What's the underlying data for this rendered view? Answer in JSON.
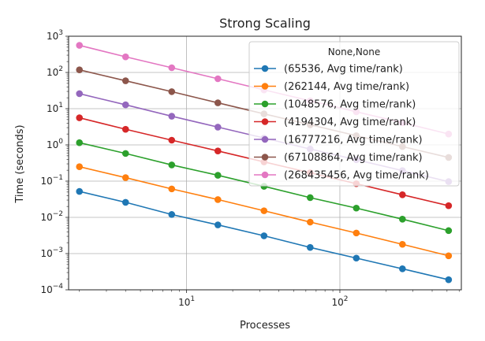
{
  "chart_data": {
    "type": "line",
    "title": "Strong Scaling",
    "xlabel": "Processes",
    "ylabel": "Time (seconds)",
    "xscale": "log",
    "yscale": "log",
    "xlim": [
      1.7,
      620
    ],
    "ylim": [
      0.0001,
      1000
    ],
    "grid": true,
    "x_ticks": [
      {
        "value": 10,
        "base": "10",
        "exp": "1"
      },
      {
        "value": 100,
        "base": "10",
        "exp": "2"
      }
    ],
    "y_ticks": [
      {
        "value": 0.0001,
        "base": "10",
        "exp": "−4"
      },
      {
        "value": 0.001,
        "base": "10",
        "exp": "−3"
      },
      {
        "value": 0.01,
        "base": "10",
        "exp": "−2"
      },
      {
        "value": 0.1,
        "base": "10",
        "exp": "−1"
      },
      {
        "value": 1,
        "base": "10",
        "exp": "0"
      },
      {
        "value": 10,
        "base": "10",
        "exp": "1"
      },
      {
        "value": 100,
        "base": "10",
        "exp": "2"
      },
      {
        "value": 1000,
        "base": "10",
        "exp": "3"
      }
    ],
    "legend": {
      "title": "None,None",
      "position": "upper right"
    },
    "x": [
      2,
      4,
      8,
      16,
      32,
      64,
      128,
      256,
      512
    ],
    "series": [
      {
        "name": "(65536, Avg time/rank)",
        "color": "#1f77b4",
        "values": [
          0.052,
          0.026,
          0.012,
          0.0062,
          0.0031,
          0.00148,
          0.00075,
          0.00038,
          0.00019
        ]
      },
      {
        "name": "(262144, Avg time/rank)",
        "color": "#ff7f0e",
        "values": [
          0.25,
          0.125,
          0.061,
          0.031,
          0.0152,
          0.0074,
          0.0037,
          0.0018,
          0.00087
        ]
      },
      {
        "name": "(1048576, Avg time/rank)",
        "color": "#2ca02c",
        "values": [
          1.15,
          0.58,
          0.28,
          0.145,
          0.072,
          0.035,
          0.018,
          0.0089,
          0.0043
        ]
      },
      {
        "name": "(4194304, Avg time/rank)",
        "color": "#d62728",
        "values": [
          5.6,
          2.7,
          1.35,
          0.68,
          0.34,
          0.17,
          0.085,
          0.042,
          0.021
        ]
      },
      {
        "name": "(16777216, Avg time/rank)",
        "color": "#9467bd",
        "values": [
          26,
          12.8,
          6.2,
          3.1,
          1.55,
          0.77,
          0.39,
          0.195,
          0.097
        ]
      },
      {
        "name": "(67108864, Avg time/rank)",
        "color": "#8c564b",
        "values": [
          118,
          59,
          29.5,
          14.5,
          7.2,
          3.6,
          1.8,
          0.9,
          0.45
        ]
      },
      {
        "name": "(268435456, Avg time/rank)",
        "color": "#e377c2",
        "values": [
          560,
          270,
          135,
          67,
          33,
          16.5,
          8.2,
          4.1,
          2.0
        ]
      }
    ]
  }
}
